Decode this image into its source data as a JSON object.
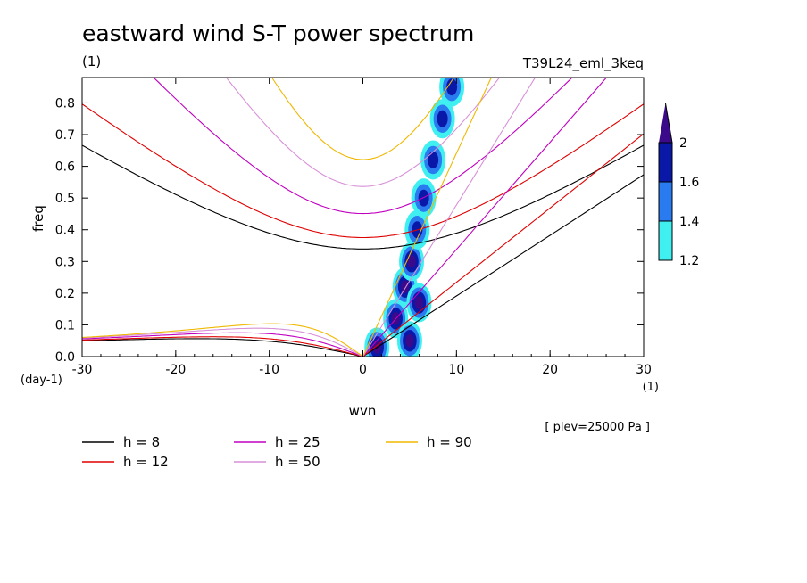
{
  "chart_data": {
    "type": "heatmap",
    "title": "eastward wind S-T power spectrum",
    "subtitle": "(1)",
    "run_label": "T39L24_eml_3keq",
    "xlabel": "wvn",
    "ylabel": "freq",
    "x_unit": "(1)",
    "y_unit": "(day-1)",
    "footnote": "[ plev=25000 Pa ]",
    "xlim": [
      -30,
      30
    ],
    "ylim": [
      0,
      0.88
    ],
    "x_ticks": [
      -30,
      -20,
      -10,
      0,
      10,
      20,
      30
    ],
    "x_tick_labels": [
      "-30",
      "-20",
      "-10",
      "0",
      "10",
      "20",
      "30"
    ],
    "y_ticks": [
      0,
      0.1,
      0.2,
      0.3,
      0.4,
      0.5,
      0.6,
      0.7,
      0.8
    ],
    "y_tick_labels": [
      "0.0",
      "0.1",
      "0.2",
      "0.3",
      "0.4",
      "0.5",
      "0.6",
      "0.7",
      "0.8"
    ],
    "colorbar": {
      "levels": [
        1.2,
        1.4,
        1.6,
        2
      ],
      "labels": [
        "1.2",
        "1.4",
        "1.6",
        "2"
      ],
      "colors": [
        "#40f0f0",
        "#2a7af0",
        "#0a18a8",
        "#3a0a8a"
      ]
    },
    "dispersion_curves": [
      {
        "label": "h =  8",
        "h": 8,
        "color": "#000000"
      },
      {
        "label": "h = 12",
        "h": 12,
        "color": "#e00000"
      },
      {
        "label": "h = 25",
        "h": 25,
        "color": "#c000c0"
      },
      {
        "label": "h = 50",
        "h": 50,
        "color": "#d890d8"
      },
      {
        "label": "h = 90",
        "h": 90,
        "color": "#f0b800"
      }
    ],
    "spectral_peaks": [
      {
        "x": 1.5,
        "y": 0.03,
        "level": 2
      },
      {
        "x": 3.5,
        "y": 0.12,
        "level": 2
      },
      {
        "x": 4.5,
        "y": 0.22,
        "level": 2
      },
      {
        "x": 5.2,
        "y": 0.3,
        "level": 2
      },
      {
        "x": 5.8,
        "y": 0.4,
        "level": 1.6
      },
      {
        "x": 6.5,
        "y": 0.5,
        "level": 1.6
      },
      {
        "x": 7.5,
        "y": 0.62,
        "level": 1.6
      },
      {
        "x": 8.5,
        "y": 0.75,
        "level": 1.6
      },
      {
        "x": 9.5,
        "y": 0.85,
        "level": 1.6
      },
      {
        "x": 5,
        "y": 0.05,
        "level": 2
      },
      {
        "x": 6,
        "y": 0.17,
        "level": 2
      }
    ]
  }
}
